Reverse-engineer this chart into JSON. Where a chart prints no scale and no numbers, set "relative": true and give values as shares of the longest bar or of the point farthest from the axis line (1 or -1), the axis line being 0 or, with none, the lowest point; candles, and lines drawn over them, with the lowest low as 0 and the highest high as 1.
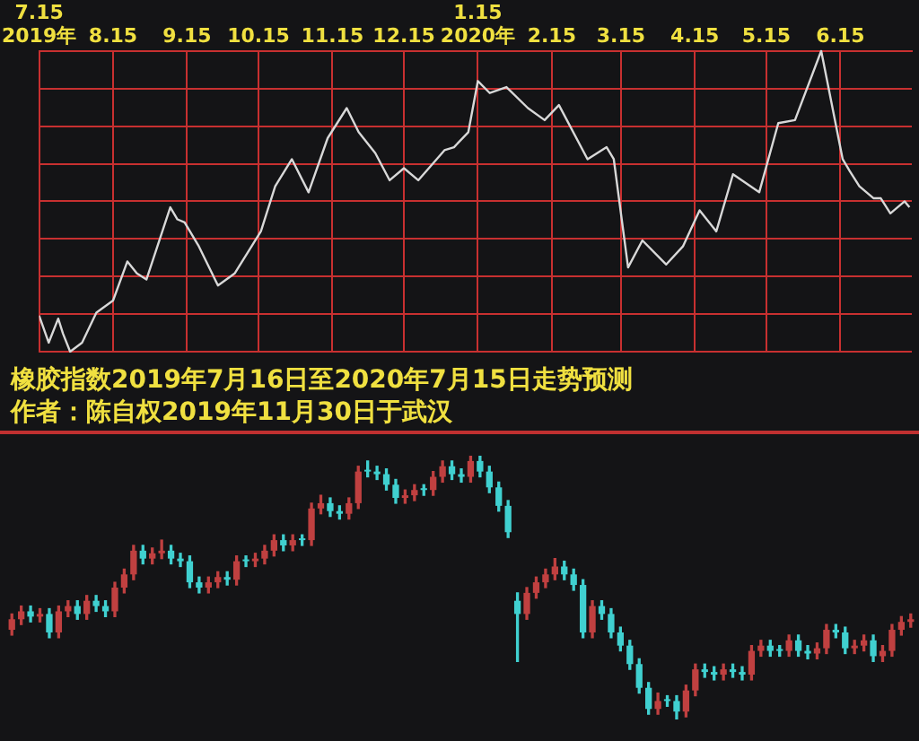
{
  "chart_data": [
    {
      "type": "line",
      "relative": true,
      "title": "橡胶指数2019年7月16日至2020年7月15日走势预测",
      "subtitle": "作者：陈自权2019年11月30日于武汉",
      "grid": true,
      "xlim": [
        "2019-07-15",
        "2020-07-15"
      ],
      "xticks": [
        {
          "value": "2019-07-15",
          "label": "7.15\n2019年"
        },
        {
          "value": "2019-08-15",
          "label": "8.15"
        },
        {
          "value": "2019-09-15",
          "label": "9.15"
        },
        {
          "value": "2019-10-15",
          "label": "10.15"
        },
        {
          "value": "2019-11-15",
          "label": "11.15"
        },
        {
          "value": "2019-12-15",
          "label": "12.15"
        },
        {
          "value": "2020-01-15",
          "label": "1.15\n2020年"
        },
        {
          "value": "2020-02-15",
          "label": "2.15"
        },
        {
          "value": "2020-03-15",
          "label": "3.15"
        },
        {
          "value": "2020-04-15",
          "label": "4.15"
        },
        {
          "value": "2020-05-15",
          "label": "5.15"
        },
        {
          "value": "2020-06-15",
          "label": "6.15"
        }
      ],
      "series": [
        {
          "color": "#d8d8d8",
          "x": [
            "2019-07-15",
            "2019-07-19",
            "2019-07-23",
            "2019-07-25",
            "2019-07-28",
            "2019-08-02",
            "2019-08-08",
            "2019-08-15",
            "2019-08-21",
            "2019-08-25",
            "2019-08-29",
            "2019-09-08",
            "2019-09-11",
            "2019-09-14",
            "2019-09-20",
            "2019-09-28",
            "2019-10-05",
            "2019-10-16",
            "2019-10-22",
            "2019-10-29",
            "2019-11-05",
            "2019-11-13",
            "2019-11-21",
            "2019-11-26",
            "2019-12-03",
            "2019-12-09",
            "2019-12-15",
            "2019-12-21",
            "2020-01-01",
            "2020-01-05",
            "2020-01-11",
            "2020-01-15",
            "2020-01-20",
            "2020-01-27",
            "2020-02-05",
            "2020-02-12",
            "2020-02-18",
            "2020-03-01",
            "2020-03-09",
            "2020-03-12",
            "2020-03-18",
            "2020-03-24",
            "2020-04-03",
            "2020-04-10",
            "2020-04-17",
            "2020-04-24",
            "2020-05-01",
            "2020-05-12",
            "2020-05-20",
            "2020-05-27",
            "2020-06-07",
            "2020-06-16",
            "2020-06-19",
            "2020-06-23",
            "2020-06-29",
            "2020-07-02",
            "2020-07-06",
            "2020-07-12",
            "2020-07-14"
          ],
          "values": [
            0.12,
            0.03,
            0.11,
            0.06,
            0,
            0.03,
            0.13,
            0.17,
            0.3,
            0.26,
            0.24,
            0.48,
            0.44,
            0.43,
            0.35,
            0.22,
            0.26,
            0.4,
            0.55,
            0.64,
            0.53,
            0.71,
            0.81,
            0.73,
            0.66,
            0.57,
            0.61,
            0.57,
            0.67,
            0.68,
            0.73,
            0.9,
            0.86,
            0.88,
            0.81,
            0.77,
            0.82,
            0.64,
            0.68,
            0.64,
            0.28,
            0.37,
            0.29,
            0.35,
            0.47,
            0.4,
            0.59,
            0.53,
            0.76,
            0.77,
            1,
            0.64,
            0.6,
            0.55,
            0.51,
            0.51,
            0.46,
            0.5,
            0.48
          ]
        }
      ]
    },
    {
      "type": "candlestick",
      "relative": true,
      "categories": [
        null,
        null,
        null,
        null,
        null,
        null,
        null,
        null,
        null,
        null,
        null,
        null,
        null,
        null,
        null,
        null,
        null,
        null,
        null,
        null,
        null,
        null,
        null,
        null,
        null,
        null,
        null,
        null,
        null,
        null,
        null,
        null,
        null,
        null,
        null,
        null,
        null,
        null,
        null,
        null,
        null,
        null,
        null,
        null,
        null,
        null,
        null,
        null,
        null,
        null,
        null,
        null,
        null,
        null,
        null,
        null,
        null,
        null,
        null,
        null,
        null,
        null,
        null,
        null,
        null,
        null,
        null,
        null,
        null,
        null,
        null,
        null,
        null,
        null,
        null,
        null,
        null,
        null,
        null,
        null,
        null,
        null,
        null,
        null,
        null,
        null,
        null,
        null,
        null,
        null,
        null,
        null,
        null,
        null,
        null,
        null,
        null
      ],
      "ohlc": [
        [
          0.34,
          0.4,
          0.32,
          0.38
        ],
        [
          0.38,
          0.43,
          0.36,
          0.41
        ],
        [
          0.41,
          0.43,
          0.37,
          0.39
        ],
        [
          0.39,
          0.42,
          0.37,
          0.4
        ],
        [
          0.4,
          0.42,
          0.31,
          0.33
        ],
        [
          0.33,
          0.43,
          0.31,
          0.41
        ],
        [
          0.41,
          0.45,
          0.39,
          0.43
        ],
        [
          0.43,
          0.45,
          0.38,
          0.4
        ],
        [
          0.4,
          0.47,
          0.38,
          0.45
        ],
        [
          0.45,
          0.47,
          0.41,
          0.43
        ],
        [
          0.43,
          0.45,
          0.39,
          0.41
        ],
        [
          0.41,
          0.52,
          0.39,
          0.5
        ],
        [
          0.5,
          0.57,
          0.48,
          0.55
        ],
        [
          0.55,
          0.66,
          0.53,
          0.64
        ],
        [
          0.64,
          0.66,
          0.59,
          0.61
        ],
        [
          0.61,
          0.65,
          0.59,
          0.63
        ],
        [
          0.63,
          0.68,
          0.61,
          0.64
        ],
        [
          0.64,
          0.66,
          0.59,
          0.61
        ],
        [
          0.61,
          0.63,
          0.58,
          0.6
        ],
        [
          0.6,
          0.62,
          0.5,
          0.52
        ],
        [
          0.52,
          0.54,
          0.48,
          0.5
        ],
        [
          0.5,
          0.54,
          0.48,
          0.52
        ],
        [
          0.52,
          0.56,
          0.5,
          0.54
        ],
        [
          0.54,
          0.56,
          0.51,
          0.53
        ],
        [
          0.53,
          0.62,
          0.51,
          0.6
        ],
        [
          0.6,
          0.62,
          0.58,
          0.6
        ],
        [
          0.6,
          0.63,
          0.58,
          0.61
        ],
        [
          0.61,
          0.66,
          0.59,
          0.64
        ],
        [
          0.64,
          0.7,
          0.62,
          0.68
        ],
        [
          0.68,
          0.7,
          0.64,
          0.66
        ],
        [
          0.66,
          0.7,
          0.64,
          0.68
        ],
        [
          0.68,
          0.7,
          0.66,
          0.68
        ],
        [
          0.68,
          0.82,
          0.66,
          0.8
        ],
        [
          0.8,
          0.85,
          0.78,
          0.82
        ],
        [
          0.82,
          0.84,
          0.77,
          0.79
        ],
        [
          0.79,
          0.81,
          0.76,
          0.78
        ],
        [
          0.78,
          0.84,
          0.76,
          0.82
        ],
        [
          0.82,
          0.96,
          0.8,
          0.94
        ],
        [
          0.94,
          0.98,
          0.92,
          0.94
        ],
        [
          0.94,
          0.96,
          0.91,
          0.93
        ],
        [
          0.93,
          0.95,
          0.87,
          0.89
        ],
        [
          0.89,
          0.91,
          0.82,
          0.84
        ],
        [
          0.84,
          0.87,
          0.82,
          0.85
        ],
        [
          0.85,
          0.89,
          0.83,
          0.87
        ],
        [
          0.87,
          0.89,
          0.85,
          0.87
        ],
        [
          0.87,
          0.94,
          0.85,
          0.92
        ],
        [
          0.92,
          0.98,
          0.9,
          0.96
        ],
        [
          0.96,
          0.98,
          0.91,
          0.93
        ],
        [
          0.93,
          0.95,
          0.9,
          0.92
        ],
        [
          0.92,
          1,
          0.9,
          0.98
        ],
        [
          0.98,
          1,
          0.92,
          0.94
        ],
        [
          0.94,
          0.96,
          0.86,
          0.88
        ],
        [
          0.88,
          0.9,
          0.79,
          0.81
        ],
        [
          0.81,
          0.83,
          0.69,
          0.71
        ],
        [
          0.45,
          0.48,
          0.22,
          0.4
        ],
        [
          0.4,
          0.5,
          0.38,
          0.48
        ],
        [
          0.48,
          0.54,
          0.46,
          0.52
        ],
        [
          0.52,
          0.57,
          0.5,
          0.55
        ],
        [
          0.55,
          0.61,
          0.53,
          0.58
        ],
        [
          0.58,
          0.6,
          0.53,
          0.55
        ],
        [
          0.55,
          0.57,
          0.49,
          0.51
        ],
        [
          0.51,
          0.53,
          0.31,
          0.33
        ],
        [
          0.33,
          0.45,
          0.31,
          0.43
        ],
        [
          0.43,
          0.45,
          0.38,
          0.4
        ],
        [
          0.4,
          0.42,
          0.31,
          0.33
        ],
        [
          0.33,
          0.35,
          0.26,
          0.28
        ],
        [
          0.28,
          0.3,
          0.19,
          0.21
        ],
        [
          0.21,
          0.23,
          0.1,
          0.12
        ],
        [
          0.12,
          0.14,
          0.02,
          0.04
        ],
        [
          0.04,
          0.1,
          0.02,
          0.07
        ],
        [
          0.07,
          0.09,
          0.05,
          0.07
        ],
        [
          0.07,
          0.09,
          0,
          0.03
        ],
        [
          0.03,
          0.13,
          0.01,
          0.11
        ],
        [
          0.11,
          0.21,
          0.09,
          0.19
        ],
        [
          0.19,
          0.21,
          0.16,
          0.18
        ],
        [
          0.18,
          0.2,
          0.15,
          0.17
        ],
        [
          0.17,
          0.21,
          0.15,
          0.19
        ],
        [
          0.19,
          0.21,
          0.16,
          0.18
        ],
        [
          0.18,
          0.2,
          0.15,
          0.17
        ],
        [
          0.17,
          0.28,
          0.15,
          0.26
        ],
        [
          0.26,
          0.3,
          0.24,
          0.28
        ],
        [
          0.28,
          0.3,
          0.24,
          0.26
        ],
        [
          0.26,
          0.28,
          0.24,
          0.26
        ],
        [
          0.26,
          0.32,
          0.24,
          0.3
        ],
        [
          0.3,
          0.32,
          0.24,
          0.26
        ],
        [
          0.26,
          0.28,
          0.23,
          0.25
        ],
        [
          0.25,
          0.29,
          0.23,
          0.27
        ],
        [
          0.27,
          0.36,
          0.25,
          0.34
        ],
        [
          0.34,
          0.36,
          0.31,
          0.33
        ],
        [
          0.33,
          0.35,
          0.25,
          0.27
        ],
        [
          0.27,
          0.3,
          0.25,
          0.28
        ],
        [
          0.28,
          0.32,
          0.26,
          0.3
        ],
        [
          0.3,
          0.32,
          0.22,
          0.24
        ],
        [
          0.24,
          0.28,
          0.22,
          0.26
        ],
        [
          0.26,
          0.36,
          0.24,
          0.34
        ],
        [
          0.34,
          0.39,
          0.32,
          0.37
        ],
        [
          0.37,
          0.4,
          0.35,
          0.38
        ]
      ],
      "colors": [
        "#c04040",
        "#c04040",
        "#40d0d0",
        "#c04040",
        "#40d0d0",
        "#c04040",
        "#c04040",
        "#40d0d0",
        "#c04040",
        "#40d0d0",
        "#40d0d0",
        "#c04040",
        "#c04040",
        "#c04040",
        "#40d0d0",
        "#c04040",
        "#c04040",
        "#40d0d0",
        "#40d0d0",
        "#40d0d0",
        "#40d0d0",
        "#c04040",
        "#c04040",
        "#40d0d0",
        "#c04040",
        "#40d0d0",
        "#c04040",
        "#c04040",
        "#c04040",
        "#40d0d0",
        "#c04040",
        "#40d0d0",
        "#c04040",
        "#c04040",
        "#40d0d0",
        "#40d0d0",
        "#c04040",
        "#c04040",
        "#40d0d0",
        "#40d0d0",
        "#40d0d0",
        "#40d0d0",
        "#c04040",
        "#c04040",
        "#40d0d0",
        "#c04040",
        "#c04040",
        "#40d0d0",
        "#40d0d0",
        "#c04040",
        "#40d0d0",
        "#40d0d0",
        "#40d0d0",
        "#40d0d0",
        "#40d0d0",
        "#c04040",
        "#c04040",
        "#c04040",
        "#c04040",
        "#40d0d0",
        "#40d0d0",
        "#40d0d0",
        "#c04040",
        "#40d0d0",
        "#40d0d0",
        "#40d0d0",
        "#40d0d0",
        "#40d0d0",
        "#40d0d0",
        "#c04040",
        "#40d0d0",
        "#40d0d0",
        "#c04040",
        "#c04040",
        "#40d0d0",
        "#40d0d0",
        "#c04040",
        "#40d0d0",
        "#40d0d0",
        "#c04040",
        "#c04040",
        "#40d0d0",
        "#40d0d0",
        "#c04040",
        "#40d0d0",
        "#40d0d0",
        "#c04040",
        "#c04040",
        "#40d0d0",
        "#40d0d0",
        "#c04040",
        "#c04040",
        "#40d0d0",
        "#c04040",
        "#c04040",
        "#c04040",
        "#c04040"
      ]
    }
  ]
}
